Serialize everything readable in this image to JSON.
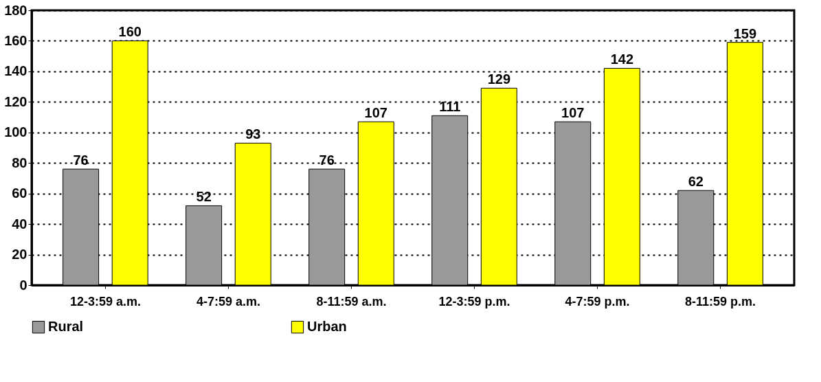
{
  "chart_data": {
    "type": "bar",
    "categories": [
      "12-3:59 a.m.",
      "4-7:59 a.m.",
      "8-11:59 a.m.",
      "12-3:59 p.m.",
      "4-7:59 p.m.",
      "8-11:59 p.m."
    ],
    "series": [
      {
        "name": "Rural",
        "color": "#999999",
        "values": [
          76,
          52,
          76,
          111,
          107,
          62
        ]
      },
      {
        "name": "Urban",
        "color": "#ffff00",
        "values": [
          160,
          93,
          107,
          129,
          142,
          159
        ]
      }
    ],
    "ylim": [
      0,
      180
    ],
    "yticks": [
      0,
      20,
      40,
      60,
      80,
      100,
      120,
      140,
      160,
      180
    ],
    "data_labels": true,
    "grid": "y",
    "legend": "bottom"
  }
}
